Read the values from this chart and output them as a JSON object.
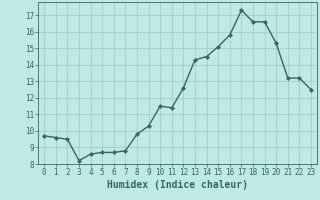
{
  "x": [
    0,
    1,
    2,
    3,
    4,
    5,
    6,
    7,
    8,
    9,
    10,
    11,
    12,
    13,
    14,
    15,
    16,
    17,
    18,
    19,
    20,
    21,
    22,
    23
  ],
  "y": [
    9.7,
    9.6,
    9.5,
    8.2,
    8.6,
    8.7,
    8.7,
    8.8,
    9.8,
    10.3,
    11.5,
    11.4,
    12.6,
    14.3,
    14.5,
    15.1,
    15.8,
    17.3,
    16.6,
    16.6,
    15.3,
    13.2,
    13.2,
    12.5
  ],
  "line_color": "#2d6b5e",
  "marker": "D",
  "marker_size": 2.2,
  "line_width": 1.0,
  "bg_color": "#c0e8e4",
  "grid_color": "#9ec8c4",
  "xlabel": "Humidex (Indice chaleur)",
  "ylabel": "",
  "xlim": [
    -0.5,
    23.5
  ],
  "ylim": [
    8,
    17.8
  ],
  "yticks": [
    8,
    9,
    10,
    11,
    12,
    13,
    14,
    15,
    16,
    17
  ],
  "xticks": [
    0,
    1,
    2,
    3,
    4,
    5,
    6,
    7,
    8,
    9,
    10,
    11,
    12,
    13,
    14,
    15,
    16,
    17,
    18,
    19,
    20,
    21,
    22,
    23
  ],
  "tick_color": "#2d6b5e",
  "label_fontsize": 7,
  "tick_fontsize": 5.5
}
